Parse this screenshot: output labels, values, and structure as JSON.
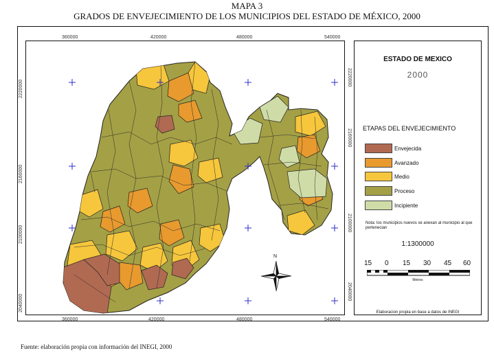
{
  "header": {
    "map_number": "MAPA 3",
    "title": "GRADOS DE ENVEJECIMIENTO DE LOS MUNICIPIOS DEL ESTADO DE MÉXICO, 2000"
  },
  "grid": {
    "x_ticks_top": [
      "360000",
      "420000",
      "480000",
      "540000"
    ],
    "x_ticks_bottom": [
      "360000",
      "420000",
      "480000",
      "540000"
    ],
    "y_ticks_left": [
      "2220000",
      "2160000",
      "2100000",
      "2040000"
    ],
    "y_ticks_right": [
      "2220000",
      "2160000",
      "2100000",
      "2040000"
    ]
  },
  "legend": {
    "title": "ESTADO DE MEXICO",
    "year": "2000",
    "heading": "ETAPAS DEL ENVEJECIMIENTO",
    "items": [
      {
        "label": "Envejecida",
        "color": "#b06a52"
      },
      {
        "label": "Avanzado",
        "color": "#e89a2e"
      },
      {
        "label": "Medio",
        "color": "#f6c63c"
      },
      {
        "label": "Proceso",
        "color": "#a4a045"
      },
      {
        "label": "Incipiente",
        "color": "#cfdca8"
      }
    ],
    "note": "Nota: los municipios nuevos se anexan al municipio al que pertenecian",
    "scale_ratio": "1:1300000",
    "scale_labels": [
      "15",
      "0",
      "15",
      "30",
      "45",
      "60"
    ],
    "scale_unit": "Metros",
    "credit": "Elaboracion propia en base a datos de INEGI"
  },
  "north_label": "N",
  "footer": {
    "source": "Fuente: elaboración propia con información del INEGI, 2000"
  }
}
